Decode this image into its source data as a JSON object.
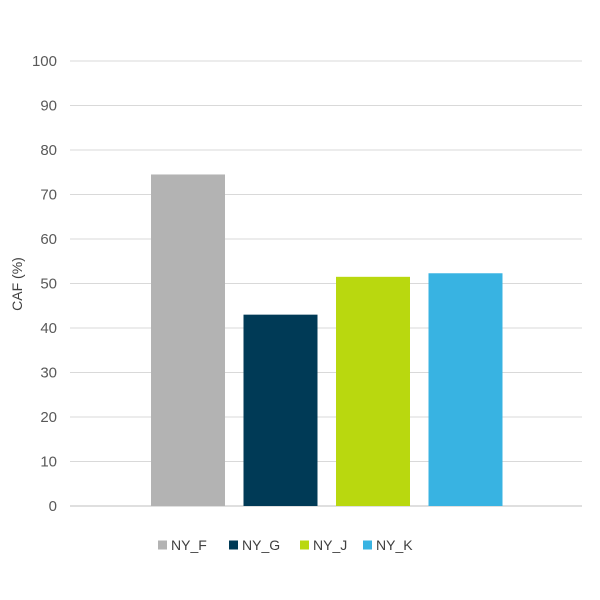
{
  "chart_data": {
    "type": "bar",
    "title": "",
    "xlabel": "",
    "ylabel": "CAF (%)",
    "ylim": [
      0,
      100
    ],
    "yticks": [
      0,
      10,
      20,
      30,
      40,
      50,
      60,
      70,
      80,
      90,
      100
    ],
    "grid": true,
    "legend_position": "bottom",
    "categories": [
      "NY_F",
      "NY_G",
      "NY_J",
      "NY_K"
    ],
    "values": [
      74.5,
      43,
      51.5,
      52.3
    ],
    "colors": [
      "#b3b3b3",
      "#003a56",
      "#b9d80f",
      "#38b3e2"
    ]
  }
}
